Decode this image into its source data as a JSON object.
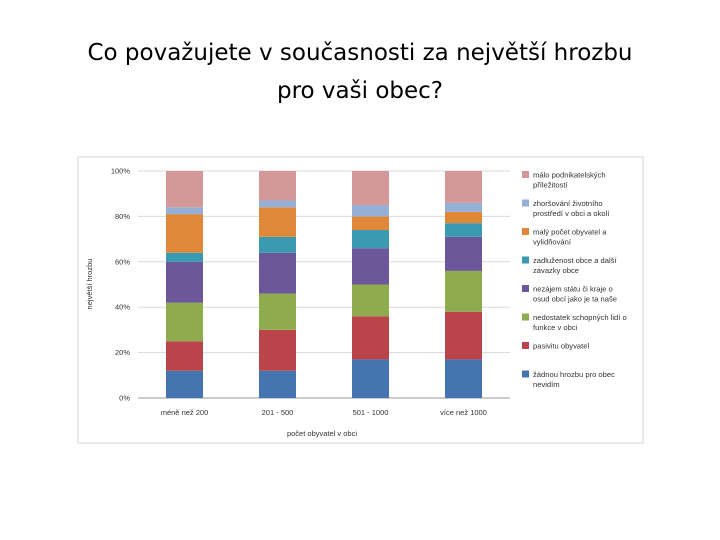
{
  "slide": {
    "title_line1": "Co považujete v současnosti za největší hrozbu",
    "title_line2": "pro vaši obec?"
  },
  "chart_data": {
    "type": "bar",
    "stacked": true,
    "percent": true,
    "xlabel": "počet obyvatel v obci",
    "ylabel": "největší hrozbu",
    "ylim": [
      0,
      100
    ],
    "yticks": [
      "0%",
      "20%",
      "40%",
      "60%",
      "80%",
      "100%"
    ],
    "grid": true,
    "legend_position": "right",
    "categories": [
      "méně než 200",
      "201 - 500",
      "501 - 1000",
      "více než 1000"
    ],
    "series": [
      {
        "name_lines": [
          "žádnou hrozbu pro obec",
          "nevidím"
        ],
        "color": "#4575B0",
        "values": [
          12,
          12,
          17,
          17
        ]
      },
      {
        "name_lines": [
          "pasivitu obyvatel"
        ],
        "color": "#B9454A",
        "values": [
          13,
          18,
          19,
          21
        ]
      },
      {
        "name_lines": [
          "nedostatek schopných lidí o",
          "funkce v obci"
        ],
        "color": "#8EAB4D",
        "values": [
          17,
          16,
          14,
          18
        ]
      },
      {
        "name_lines": [
          "nezájem státu či kraje o",
          "osud obcí jako je ta naše"
        ],
        "color": "#6B579A",
        "values": [
          18,
          18,
          16,
          15
        ]
      },
      {
        "name_lines": [
          "zadluženost obce a další",
          "závazky obce"
        ],
        "color": "#3A9AB0",
        "values": [
          4,
          7,
          8,
          6
        ]
      },
      {
        "name_lines": [
          "malý počet obyvatel a",
          "vylidňování"
        ],
        "color": "#E0883A",
        "values": [
          17,
          13,
          6,
          5
        ]
      },
      {
        "name_lines": [
          "zhoršování životního",
          "prostředí v obci a okolí"
        ],
        "color": "#95AFD6",
        "values": [
          3,
          3,
          5,
          4
        ]
      },
      {
        "name_lines": [
          "málo podnikatelských",
          "příležitostí"
        ],
        "color": "#D49898",
        "values": [
          16,
          13,
          15,
          14
        ]
      }
    ]
  }
}
